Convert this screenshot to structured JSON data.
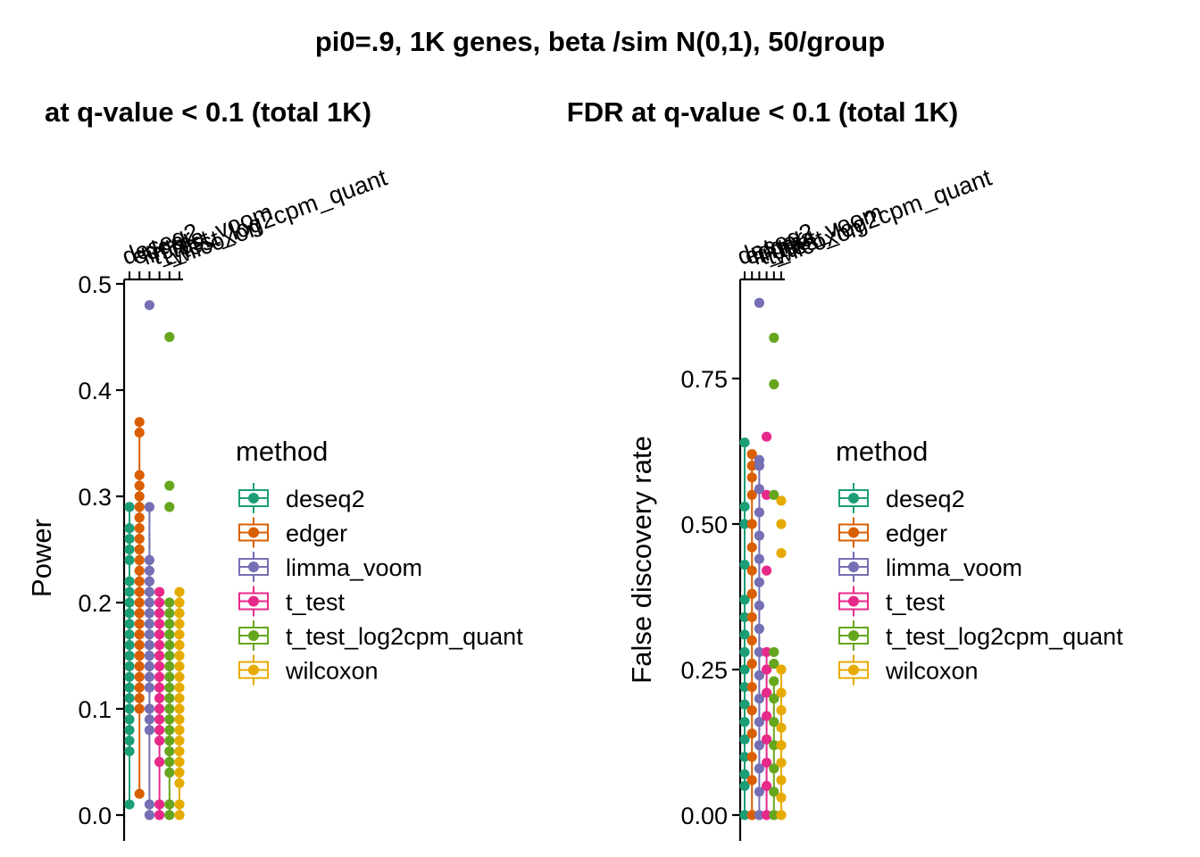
{
  "title": "pi0=.9, 1K genes, beta /sim N(0,1), 50/group",
  "chart_data": [
    {
      "type": "boxplot",
      "title": "at q-value <  0.1 (total 1K)",
      "xlabel": "",
      "ylabel": "Power",
      "ylim": [
        -0.025,
        0.505
      ],
      "yticks": [
        0.0,
        0.1,
        0.2,
        0.3,
        0.4,
        0.5
      ],
      "ytick_labels": [
        "0.0",
        "0.1",
        "0.2",
        "0.3",
        "0.4",
        "0.5"
      ],
      "categories": [
        "deseq2",
        "edger",
        "limma_voom",
        "t_test",
        "t_test_log2cpm_quant",
        "wilcoxon"
      ],
      "category_labels": [
        "deseq2",
        "edger",
        "limma_voom",
        "t_test",
        "t_test_log2cpm_quant",
        "wilcoxon"
      ],
      "x_axis_position": "top",
      "series": [
        {
          "name": "deseq2",
          "whisker": [
            0.01,
            0.29
          ],
          "points": [
            0.01,
            0.06,
            0.07,
            0.08,
            0.09,
            0.1,
            0.11,
            0.12,
            0.13,
            0.14,
            0.15,
            0.16,
            0.17,
            0.18,
            0.19,
            0.2,
            0.21,
            0.22,
            0.24,
            0.25,
            0.26,
            0.27,
            0.29
          ]
        },
        {
          "name": "edger",
          "whisker": [
            0.02,
            0.37
          ],
          "points": [
            0.02,
            0.1,
            0.11,
            0.12,
            0.13,
            0.14,
            0.15,
            0.16,
            0.17,
            0.18,
            0.19,
            0.2,
            0.21,
            0.22,
            0.23,
            0.24,
            0.25,
            0.26,
            0.27,
            0.28,
            0.29,
            0.3,
            0.31,
            0.32,
            0.36,
            0.37
          ]
        },
        {
          "name": "limma_voom",
          "whisker": [
            0.0,
            0.29
          ],
          "points": [
            0.0,
            0.01,
            0.08,
            0.09,
            0.1,
            0.12,
            0.13,
            0.14,
            0.15,
            0.16,
            0.17,
            0.18,
            0.19,
            0.2,
            0.21,
            0.22,
            0.23,
            0.24,
            0.29,
            0.48
          ]
        },
        {
          "name": "t_test",
          "whisker": [
            0.0,
            0.21
          ],
          "points": [
            0.0,
            0.01,
            0.05,
            0.07,
            0.08,
            0.09,
            0.1,
            0.11,
            0.12,
            0.13,
            0.14,
            0.15,
            0.16,
            0.17,
            0.18,
            0.19,
            0.2,
            0.21
          ]
        },
        {
          "name": "t_test_log2cpm_quant",
          "whisker": [
            0.0,
            0.2
          ],
          "points": [
            0.0,
            0.01,
            0.04,
            0.05,
            0.06,
            0.07,
            0.08,
            0.09,
            0.1,
            0.11,
            0.12,
            0.13,
            0.14,
            0.15,
            0.16,
            0.17,
            0.18,
            0.19,
            0.2,
            0.29,
            0.31,
            0.45
          ]
        },
        {
          "name": "wilcoxon",
          "whisker": [
            0.0,
            0.21
          ],
          "points": [
            0.0,
            0.01,
            0.03,
            0.04,
            0.05,
            0.06,
            0.07,
            0.08,
            0.09,
            0.1,
            0.11,
            0.12,
            0.13,
            0.14,
            0.15,
            0.16,
            0.17,
            0.18,
            0.19,
            0.2,
            0.21
          ]
        }
      ]
    },
    {
      "type": "boxplot",
      "title": "FDR at q-value <  0.1 (total 1K)",
      "xlabel": "",
      "ylabel": "False discovery rate",
      "ylim": [
        -0.04,
        0.93
      ],
      "yticks": [
        0.0,
        0.25,
        0.5,
        0.75
      ],
      "ytick_labels": [
        "0.00",
        "0.25",
        "0.50",
        "0.75"
      ],
      "categories": [
        "deseq2",
        "edger",
        "limma_voom",
        "t_test",
        "t_test_log2cpm_quant",
        "wilcoxon"
      ],
      "category_labels": [
        "deseq2",
        "edger",
        "limma_voom",
        "t_test",
        "t_test_log2cpm_quant",
        "wilcoxon"
      ],
      "x_axis_position": "top",
      "series": [
        {
          "name": "deseq2",
          "whisker": [
            0.0,
            0.64
          ],
          "points": [
            0.0,
            0.05,
            0.07,
            0.1,
            0.13,
            0.16,
            0.19,
            0.22,
            0.25,
            0.28,
            0.31,
            0.34,
            0.37,
            0.43,
            0.5,
            0.53,
            0.64
          ]
        },
        {
          "name": "edger",
          "whisker": [
            0.0,
            0.62
          ],
          "points": [
            0.0,
            0.06,
            0.1,
            0.14,
            0.18,
            0.22,
            0.26,
            0.3,
            0.34,
            0.38,
            0.42,
            0.46,
            0.5,
            0.55,
            0.58,
            0.6,
            0.62
          ]
        },
        {
          "name": "limma_voom",
          "whisker": [
            0.0,
            0.61
          ],
          "points": [
            0.0,
            0.04,
            0.08,
            0.12,
            0.16,
            0.2,
            0.24,
            0.28,
            0.32,
            0.36,
            0.4,
            0.44,
            0.48,
            0.52,
            0.56,
            0.6,
            0.61,
            0.88
          ]
        },
        {
          "name": "t_test",
          "whisker": [
            0.0,
            0.28
          ],
          "points": [
            0.0,
            0.05,
            0.09,
            0.13,
            0.17,
            0.21,
            0.25,
            0.28,
            0.42,
            0.55,
            0.65
          ]
        },
        {
          "name": "t_test_log2cpm_quant",
          "whisker": [
            0.0,
            0.23
          ],
          "points": [
            0.0,
            0.04,
            0.08,
            0.12,
            0.16,
            0.2,
            0.23,
            0.26,
            0.28,
            0.55,
            0.74,
            0.82
          ]
        },
        {
          "name": "wilcoxon",
          "whisker": [
            0.0,
            0.25
          ],
          "points": [
            0.0,
            0.03,
            0.06,
            0.09,
            0.12,
            0.15,
            0.18,
            0.21,
            0.25,
            0.45,
            0.5,
            0.54
          ]
        }
      ]
    }
  ],
  "legend": {
    "title": "method",
    "items": [
      {
        "label": "deseq2",
        "color": "#1B9E77"
      },
      {
        "label": "edger",
        "color": "#D95F02"
      },
      {
        "label": "limma_voom",
        "color": "#7570B3"
      },
      {
        "label": "t_test",
        "color": "#E7298A"
      },
      {
        "label": "t_test_log2cpm_quant",
        "color": "#66A61E"
      },
      {
        "label": "wilcoxon",
        "color": "#E6AB02"
      }
    ]
  }
}
